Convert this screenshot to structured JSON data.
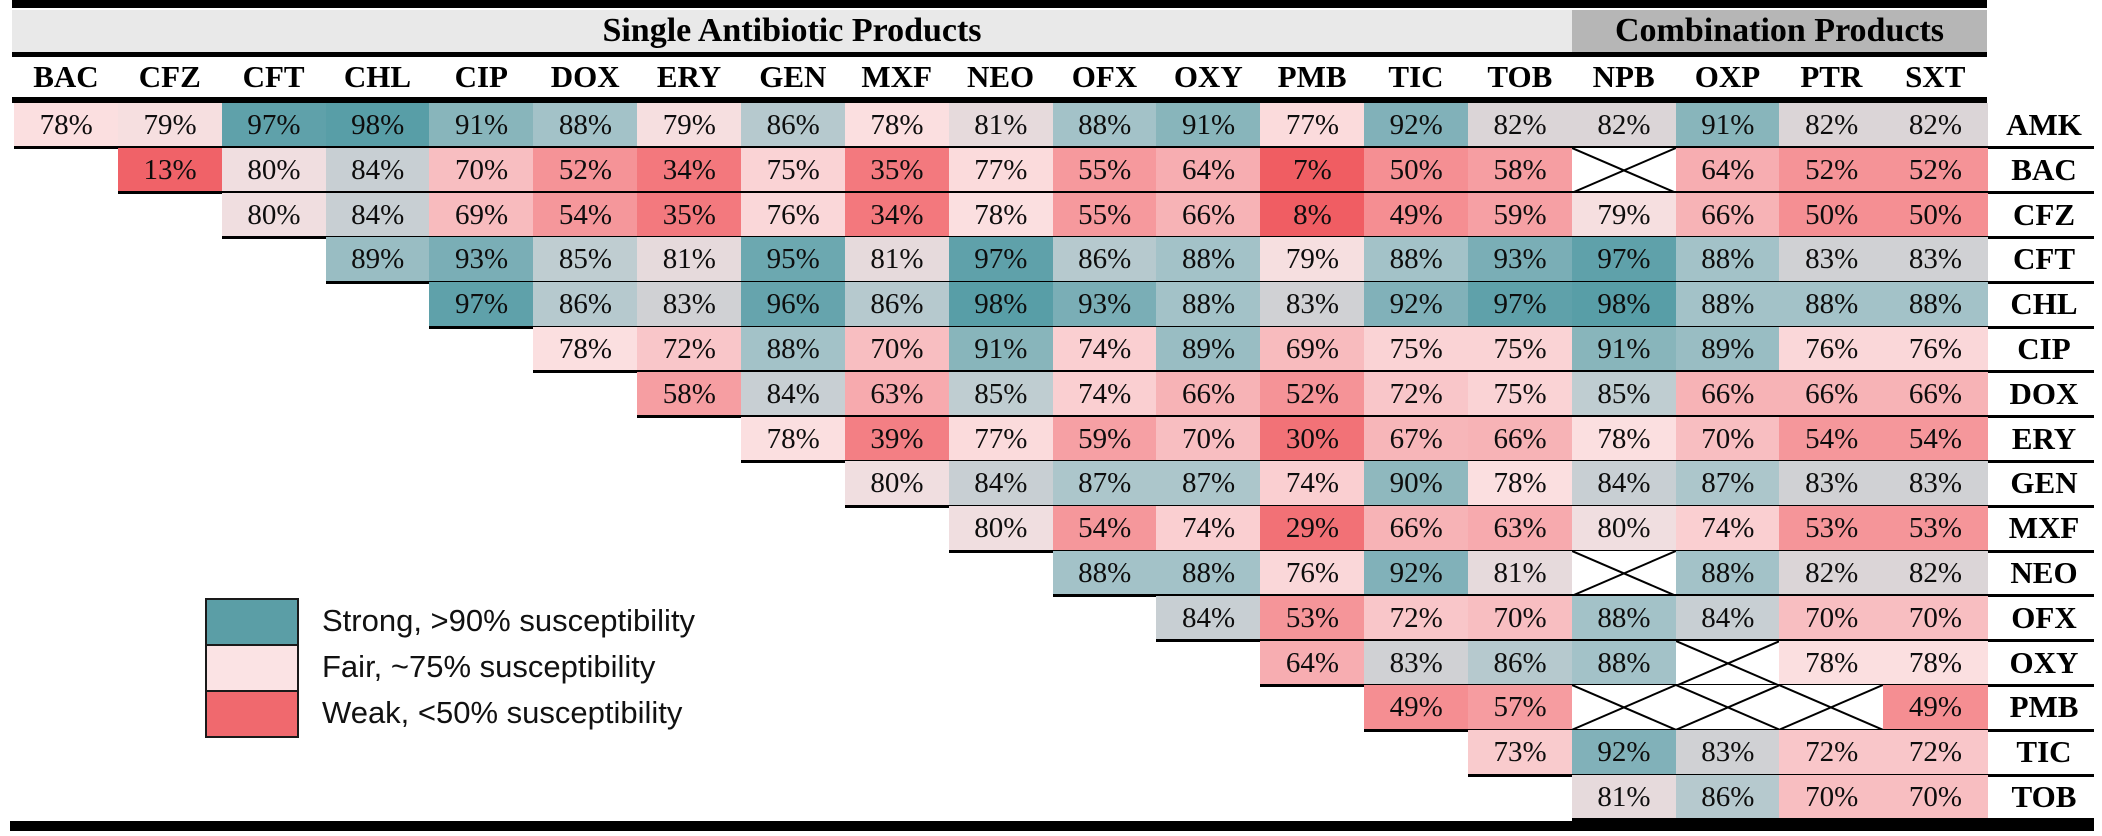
{
  "header": {
    "single_group_label": "Single Antibiotic Products",
    "combination_group_label": "Combination Products"
  },
  "legend": {
    "items": [
      {
        "name": "strong",
        "label": "Strong, >90% susceptibility",
        "color": "#5b9ea6"
      },
      {
        "name": "fair",
        "label": "Fair, ~75% susceptibility",
        "color": "#fbe3e4"
      },
      {
        "name": "weak",
        "label": "Weak, <50% susceptibility",
        "color": "#f0696e"
      }
    ]
  },
  "chart_data": {
    "type": "heatmap",
    "unit": "%",
    "not_tested_marker": "X",
    "columns": [
      "BAC",
      "CFZ",
      "CFT",
      "CHL",
      "CIP",
      "DOX",
      "ERY",
      "GEN",
      "MXF",
      "NEO",
      "OFX",
      "OXY",
      "PMB",
      "TIC",
      "TOB",
      "NPB",
      "OXP",
      "PTR",
      "SXT"
    ],
    "single_product_columns": [
      "BAC",
      "CFZ",
      "CFT",
      "CHL",
      "CIP",
      "DOX",
      "ERY",
      "GEN",
      "MXF",
      "NEO",
      "OFX",
      "OXY",
      "PMB",
      "TIC",
      "TOB"
    ],
    "combination_product_columns": [
      "NPB",
      "OXP",
      "PTR",
      "SXT"
    ],
    "row_labels": [
      "AMK",
      "BAC",
      "CFZ",
      "CFT",
      "CHL",
      "CIP",
      "DOX",
      "ERY",
      "GEN",
      "MXF",
      "NEO",
      "OFX",
      "OXY",
      "PMB",
      "TIC",
      "TOB"
    ],
    "rows": [
      {
        "label": "AMK",
        "start_col": "BAC",
        "values": [
          78,
          79,
          97,
          98,
          91,
          88,
          79,
          86,
          78,
          81,
          88,
          91,
          77,
          92,
          82,
          82,
          91,
          82,
          82
        ]
      },
      {
        "label": "BAC",
        "start_col": "CFZ",
        "values": [
          13,
          80,
          84,
          70,
          52,
          34,
          75,
          35,
          77,
          55,
          64,
          7,
          50,
          58,
          "X",
          64,
          52,
          52
        ]
      },
      {
        "label": "CFZ",
        "start_col": "CFT",
        "values": [
          80,
          84,
          69,
          54,
          35,
          76,
          34,
          78,
          55,
          66,
          8,
          49,
          59,
          79,
          66,
          50,
          50
        ]
      },
      {
        "label": "CFT",
        "start_col": "CHL",
        "values": [
          89,
          93,
          85,
          81,
          95,
          81,
          97,
          86,
          88,
          79,
          88,
          93,
          97,
          88,
          83,
          83
        ]
      },
      {
        "label": "CHL",
        "start_col": "CIP",
        "values": [
          97,
          86,
          83,
          96,
          86,
          98,
          93,
          88,
          83,
          92,
          97,
          98,
          88,
          88,
          88
        ]
      },
      {
        "label": "CIP",
        "start_col": "DOX",
        "values": [
          78,
          72,
          88,
          70,
          91,
          74,
          89,
          69,
          75,
          75,
          91,
          89,
          76,
          76
        ]
      },
      {
        "label": "DOX",
        "start_col": "ERY",
        "values": [
          58,
          84,
          63,
          85,
          74,
          66,
          52,
          72,
          75,
          85,
          66,
          66,
          66
        ]
      },
      {
        "label": "ERY",
        "start_col": "GEN",
        "values": [
          78,
          39,
          77,
          59,
          70,
          30,
          67,
          66,
          78,
          70,
          54,
          54
        ]
      },
      {
        "label": "GEN",
        "start_col": "MXF",
        "values": [
          80,
          84,
          87,
          87,
          74,
          90,
          78,
          84,
          87,
          83,
          83
        ]
      },
      {
        "label": "MXF",
        "start_col": "NEO",
        "values": [
          80,
          54,
          74,
          29,
          66,
          63,
          80,
          74,
          53,
          53
        ]
      },
      {
        "label": "NEO",
        "start_col": "OFX",
        "values": [
          88,
          88,
          76,
          92,
          81,
          "X",
          88,
          82,
          82
        ]
      },
      {
        "label": "OFX",
        "start_col": "OXY",
        "values": [
          84,
          53,
          72,
          70,
          88,
          84,
          70,
          70
        ]
      },
      {
        "label": "OXY",
        "start_col": "PMB",
        "values": [
          64,
          83,
          86,
          88,
          "X",
          78,
          78
        ]
      },
      {
        "label": "PMB",
        "start_col": "TIC",
        "values": [
          49,
          57,
          "X",
          "X",
          "X",
          49
        ]
      },
      {
        "label": "TIC",
        "start_col": "TOB",
        "values": [
          73,
          92,
          83,
          72,
          72
        ]
      },
      {
        "label": "TOB",
        "start_col": "NPB",
        "values": [
          81,
          86,
          70,
          70
        ]
      }
    ],
    "legend_title": "",
    "legend_entries": [
      "Strong, >90% susceptibility",
      "Fair, ~75% susceptibility",
      "Weak, <50% susceptibility"
    ],
    "layout_hints": {
      "triangular": true,
      "row_i_starts_at_column_i": true,
      "grid": "stair-step black row separators"
    }
  }
}
